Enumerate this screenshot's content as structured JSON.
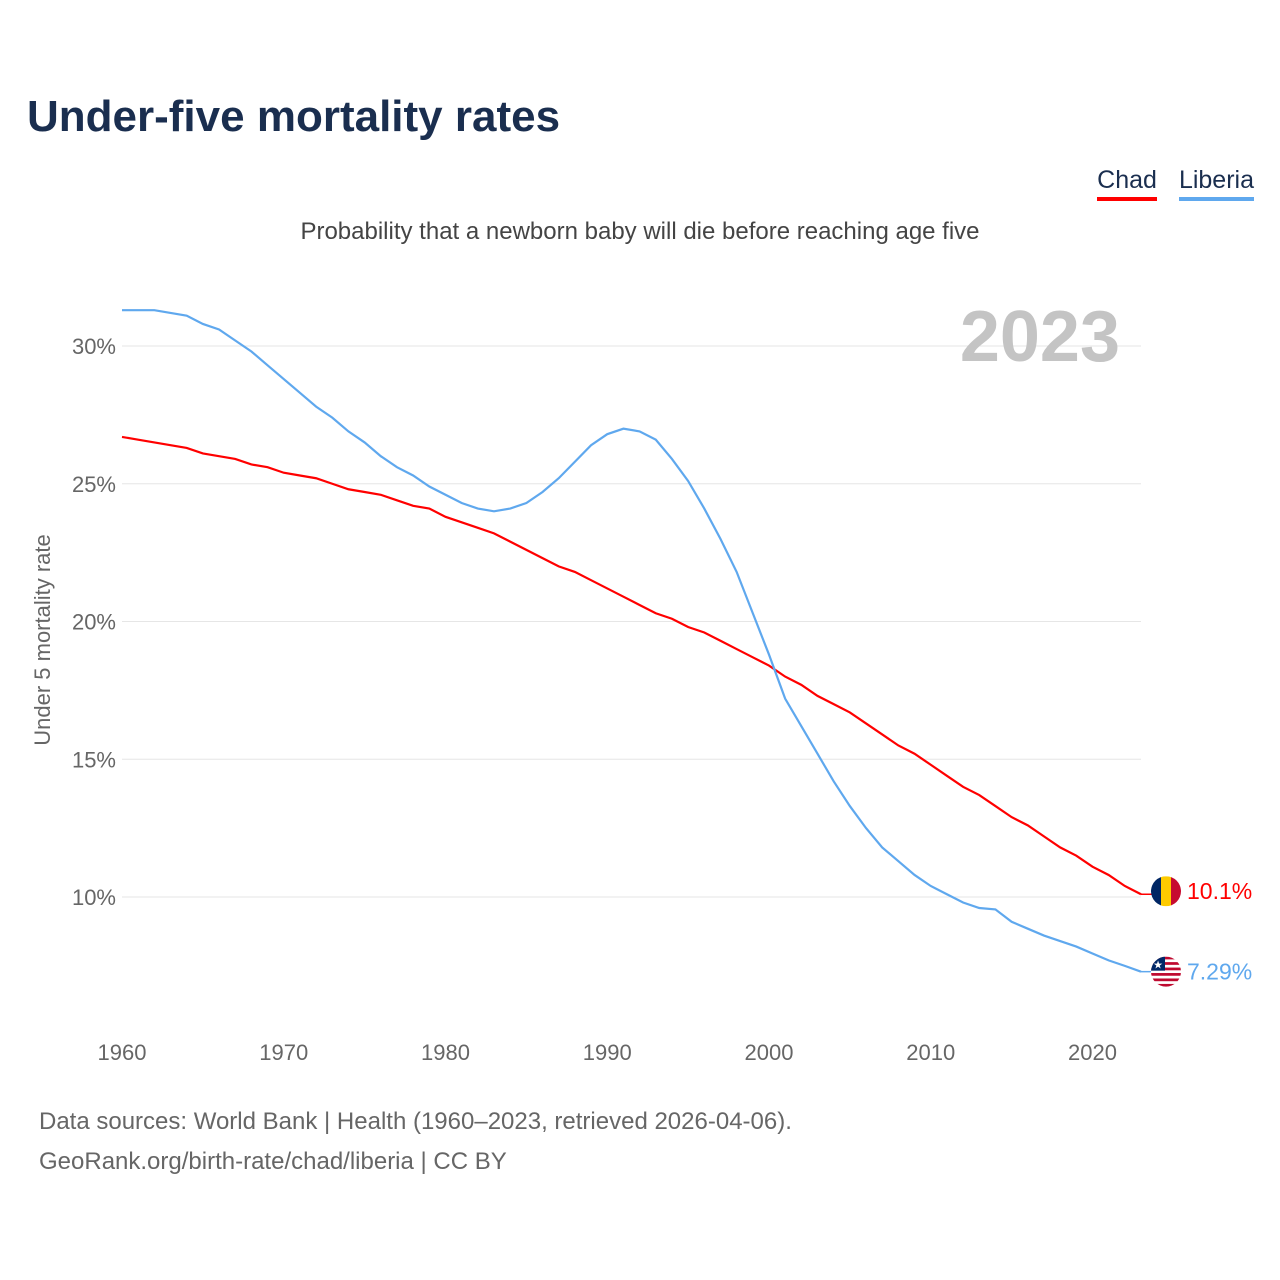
{
  "title": "Under-five mortality rates",
  "subtitle": "Probability that a newborn baby will die before reaching age five",
  "year_label": "2023",
  "legend": [
    {
      "name": "Chad",
      "color": "#ff0000"
    },
    {
      "name": "Liberia",
      "color": "#5fa8ee"
    }
  ],
  "source_line1": "Data sources: World Bank | Health (1960–2023, retrieved 2026-04-06).",
  "source_line2": "GeoRank.org/birth-rate/chad/liberia | CC BY",
  "chart_data": {
    "type": "line",
    "title": "Under-five mortality rates",
    "xlabel": "",
    "ylabel": "Under 5 mortality rate",
    "xlim": [
      1960,
      2023
    ],
    "ylim": [
      6,
      32
    ],
    "xticks": [
      1960,
      1970,
      1980,
      1990,
      2000,
      2010,
      2020
    ],
    "yticks": [
      10,
      15,
      20,
      25,
      30
    ],
    "ytick_labels": [
      "10%",
      "15%",
      "20%",
      "25%",
      "30%"
    ],
    "grid": true,
    "legend_position": "top-right",
    "x": [
      1960,
      1961,
      1962,
      1963,
      1964,
      1965,
      1966,
      1967,
      1968,
      1969,
      1970,
      1971,
      1972,
      1973,
      1974,
      1975,
      1976,
      1977,
      1978,
      1979,
      1980,
      1981,
      1982,
      1983,
      1984,
      1985,
      1986,
      1987,
      1988,
      1989,
      1990,
      1991,
      1992,
      1993,
      1994,
      1995,
      1996,
      1997,
      1998,
      1999,
      2000,
      2001,
      2002,
      2003,
      2004,
      2005,
      2006,
      2007,
      2008,
      2009,
      2010,
      2011,
      2012,
      2013,
      2014,
      2015,
      2016,
      2017,
      2018,
      2019,
      2020,
      2021,
      2022,
      2023
    ],
    "series": [
      {
        "name": "Chad",
        "color": "#ff0000",
        "end_label": "10.1%",
        "flag": "chad",
        "values": [
          26.7,
          26.6,
          26.5,
          26.4,
          26.3,
          26.1,
          26.0,
          25.9,
          25.7,
          25.6,
          25.4,
          25.3,
          25.2,
          25.0,
          24.8,
          24.7,
          24.6,
          24.4,
          24.2,
          24.1,
          23.8,
          23.6,
          23.4,
          23.2,
          22.9,
          22.6,
          22.3,
          22.0,
          21.8,
          21.5,
          21.2,
          20.9,
          20.6,
          20.3,
          20.1,
          19.8,
          19.6,
          19.3,
          19.0,
          18.7,
          18.4,
          18.0,
          17.7,
          17.3,
          17.0,
          16.7,
          16.3,
          15.9,
          15.5,
          15.2,
          14.8,
          14.4,
          14.0,
          13.7,
          13.3,
          12.9,
          12.6,
          12.2,
          11.8,
          11.5,
          11.1,
          10.8,
          10.4,
          10.1
        ]
      },
      {
        "name": "Liberia",
        "color": "#5fa8ee",
        "end_label": "7.29%",
        "flag": "liberia",
        "values": [
          31.3,
          31.3,
          31.3,
          31.2,
          31.1,
          30.8,
          30.6,
          30.2,
          29.8,
          29.3,
          28.8,
          28.3,
          27.8,
          27.4,
          26.9,
          26.5,
          26.0,
          25.6,
          25.3,
          24.9,
          24.6,
          24.3,
          24.1,
          24.0,
          24.1,
          24.3,
          24.7,
          25.2,
          25.8,
          26.4,
          26.8,
          27.0,
          26.9,
          26.6,
          25.9,
          25.1,
          24.1,
          23.0,
          21.8,
          20.3,
          18.8,
          17.2,
          16.2,
          15.2,
          14.2,
          13.3,
          12.5,
          11.8,
          11.3,
          10.8,
          10.4,
          10.1,
          9.8,
          9.6,
          9.55,
          9.1,
          8.85,
          8.6,
          8.4,
          8.2,
          7.95,
          7.7,
          7.5,
          7.29
        ]
      }
    ]
  }
}
